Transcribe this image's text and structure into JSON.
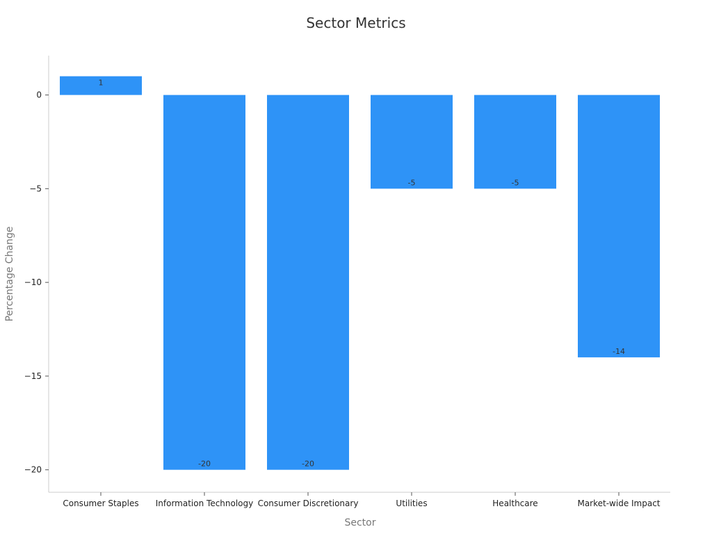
{
  "chart_data": {
    "type": "bar",
    "title": "Sector Metrics",
    "xlabel": "Sector",
    "ylabel": "Percentage Change",
    "categories": [
      "Consumer Staples",
      "Information Technology",
      "Consumer Discretionary",
      "Utilities",
      "Healthcare",
      "Market-wide Impact"
    ],
    "values": [
      1,
      -20,
      -20,
      -5,
      -5,
      -14
    ],
    "data_labels": [
      "1",
      "-20",
      "-20",
      "-5",
      "-5",
      "-14"
    ],
    "yticks": [
      0,
      -5,
      -10,
      -15,
      -20
    ],
    "ytick_labels": [
      "0",
      "−5",
      "−10",
      "−15",
      "−20"
    ],
    "ylim": [
      -21.2,
      2.1
    ],
    "bar_color": "#2e93f7",
    "grid": false,
    "legend": "none"
  }
}
